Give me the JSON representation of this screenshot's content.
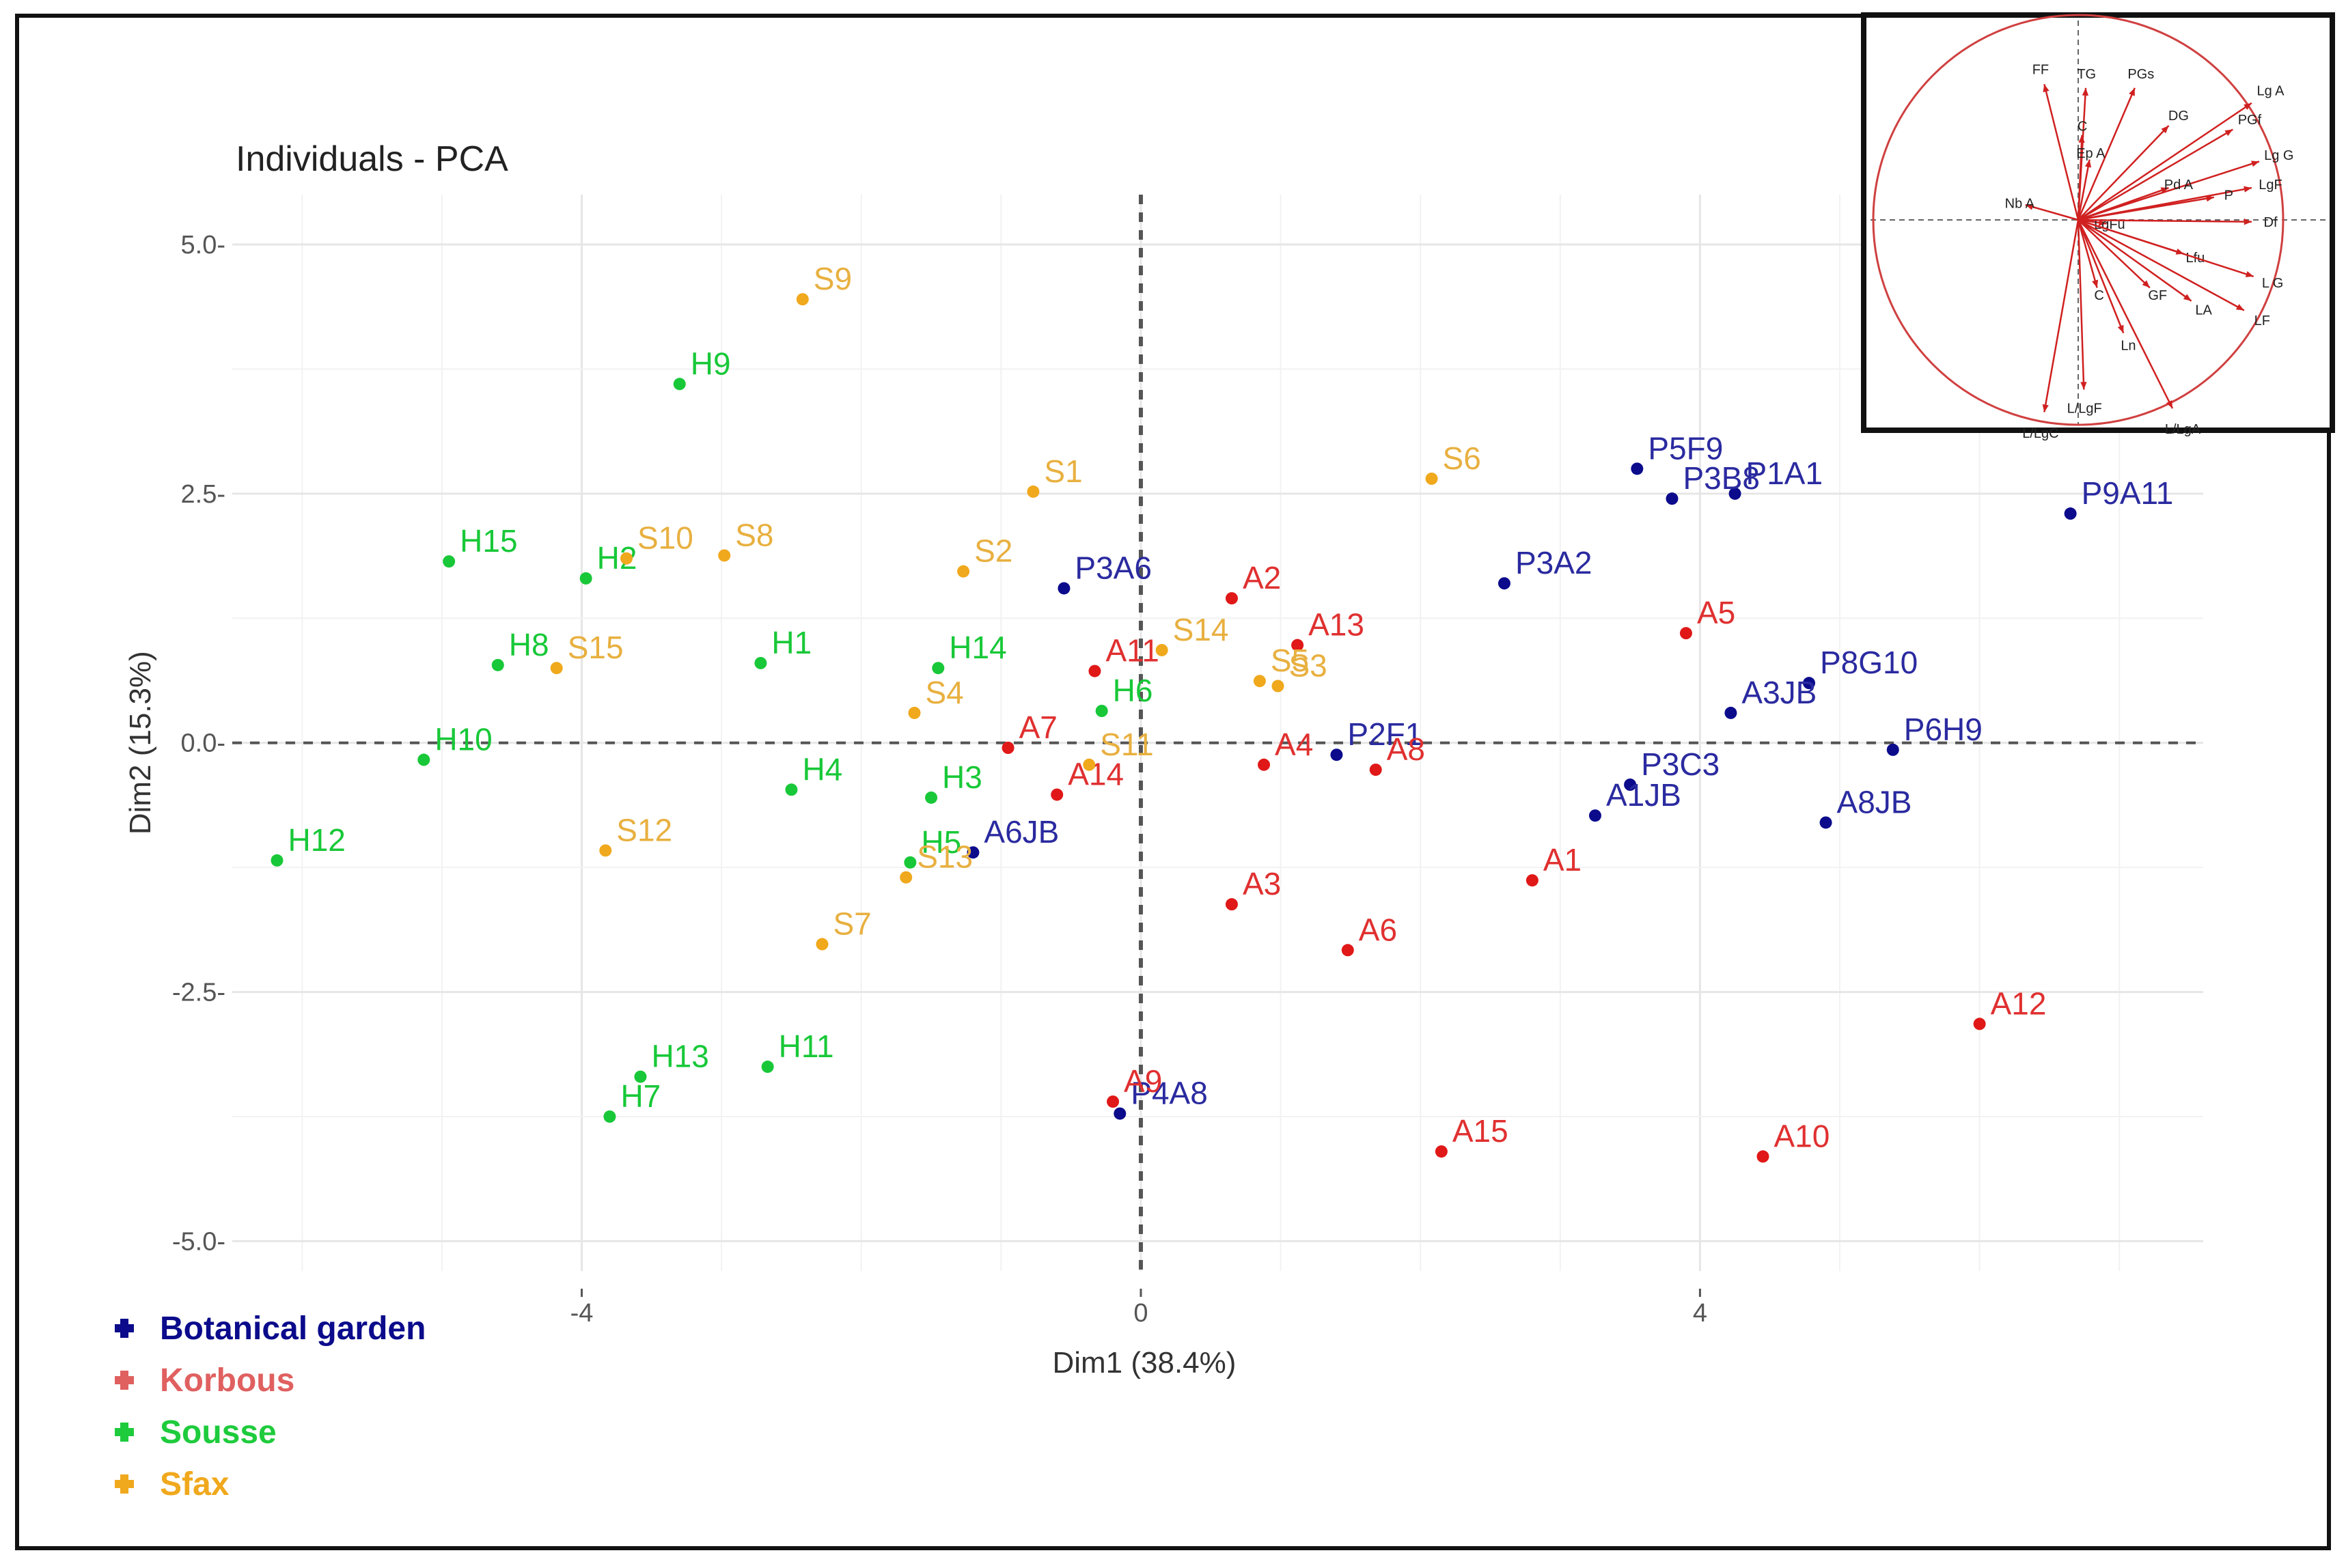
{
  "chart_data": {
    "type": "scatter",
    "title": "Individuals - PCA",
    "xlabel": "Dim1 (38.4%)",
    "ylabel": "Dim2 (15.3%)",
    "xlim": [
      -6.5,
      7.6
    ],
    "ylim": [
      -5.6,
      5.5
    ],
    "xticks": [
      -4,
      0,
      4
    ],
    "yticks": [
      5.0,
      2.5,
      0.0,
      -2.5,
      -5.0
    ],
    "ytick_labels": [
      "5.0-",
      "2.5-",
      "0.0-",
      "-2.5-",
      "-5.0-"
    ],
    "grid": true,
    "legend_position": "bottom-left",
    "legend": [
      {
        "label": "Botanical garden",
        "color": "#0b0b8c"
      },
      {
        "label": "Korbous",
        "color": "#e06060"
      },
      {
        "label": "Sousse",
        "color": "#1ecb3c"
      },
      {
        "label": "Sfax",
        "color": "#f0a81c"
      }
    ],
    "series": [
      {
        "name": "Botanical garden",
        "color": "#0b0b8c",
        "label_color": "#2a2aa0",
        "points": [
          {
            "label": "P5F9",
            "x": 3.55,
            "y": 2.75
          },
          {
            "label": "P1A1",
            "x": 4.25,
            "y": 2.5
          },
          {
            "label": "P3B8",
            "x": 3.8,
            "y": 2.45
          },
          {
            "label": "P9A11",
            "x": 6.65,
            "y": 2.3
          },
          {
            "label": "P3A6",
            "x": -0.55,
            "y": 1.55
          },
          {
            "label": "P3A2",
            "x": 2.6,
            "y": 1.6
          },
          {
            "label": "P8G10",
            "x": 4.78,
            "y": 0.6
          },
          {
            "label": "A3JB",
            "x": 4.22,
            "y": 0.3
          },
          {
            "label": "P2F1",
            "x": 1.4,
            "y": -0.12
          },
          {
            "label": "P6H9",
            "x": 5.38,
            "y": -0.07
          },
          {
            "label": "P3C3",
            "x": 3.5,
            "y": -0.42
          },
          {
            "label": "A1JB",
            "x": 3.25,
            "y": -0.73
          },
          {
            "label": "A8JB",
            "x": 4.9,
            "y": -0.8
          },
          {
            "label": "A6JB",
            "x": -1.2,
            "y": -1.1
          },
          {
            "label": "P4A8",
            "x": -0.15,
            "y": -3.72
          }
        ]
      },
      {
        "name": "Korbous",
        "color": "#e01818",
        "label_color": "#e03030",
        "points": [
          {
            "label": "A2",
            "x": 0.65,
            "y": 1.45
          },
          {
            "label": "A5",
            "x": 3.9,
            "y": 1.1
          },
          {
            "label": "A13",
            "x": 1.12,
            "y": 0.98
          },
          {
            "label": "A11",
            "x": -0.33,
            "y": 0.72
          },
          {
            "label": "A7",
            "x": -0.95,
            "y": -0.05
          },
          {
            "label": "A4",
            "x": 0.88,
            "y": -0.22
          },
          {
            "label": "A8",
            "x": 1.68,
            "y": -0.27
          },
          {
            "label": "A14",
            "x": -0.6,
            "y": -0.52
          },
          {
            "label": "A1",
            "x": 2.8,
            "y": -1.38
          },
          {
            "label": "A3",
            "x": 0.65,
            "y": -1.62
          },
          {
            "label": "A6",
            "x": 1.48,
            "y": -2.08
          },
          {
            "label": "A12",
            "x": 6.0,
            "y": -2.82
          },
          {
            "label": "A9",
            "x": -0.2,
            "y": -3.6
          },
          {
            "label": "A15",
            "x": 2.15,
            "y": -4.1
          },
          {
            "label": "A10",
            "x": 4.45,
            "y": -4.15
          }
        ]
      },
      {
        "name": "Sousse",
        "color": "#18c838",
        "label_color": "#18c838",
        "points": [
          {
            "label": "H9",
            "x": -3.3,
            "y": 3.6
          },
          {
            "label": "H15",
            "x": -4.95,
            "y": 1.82
          },
          {
            "label": "H2",
            "x": -3.97,
            "y": 1.65
          },
          {
            "label": "H8",
            "x": -4.6,
            "y": 0.78
          },
          {
            "label": "H1",
            "x": -2.72,
            "y": 0.8
          },
          {
            "label": "H14",
            "x": -1.45,
            "y": 0.75
          },
          {
            "label": "H6",
            "x": -0.28,
            "y": 0.32
          },
          {
            "label": "H10",
            "x": -5.13,
            "y": -0.17
          },
          {
            "label": "H4",
            "x": -2.5,
            "y": -0.47
          },
          {
            "label": "H3",
            "x": -1.5,
            "y": -0.55
          },
          {
            "label": "H5",
            "x": -1.65,
            "y": -1.2
          },
          {
            "label": "H12",
            "x": -6.18,
            "y": -1.18
          },
          {
            "label": "H13",
            "x": -3.58,
            "y": -3.35
          },
          {
            "label": "H11",
            "x": -2.67,
            "y": -3.25
          },
          {
            "label": "H7",
            "x": -3.8,
            "y": -3.75
          }
        ]
      },
      {
        "name": "Sfax",
        "color": "#f0a81c",
        "label_color": "#e8b040",
        "points": [
          {
            "label": "S9",
            "x": -2.42,
            "y": 4.45
          },
          {
            "label": "S1",
            "x": -0.77,
            "y": 2.52
          },
          {
            "label": "S6",
            "x": 2.08,
            "y": 2.65
          },
          {
            "label": "S10",
            "x": -3.68,
            "y": 1.85
          },
          {
            "label": "S8",
            "x": -2.98,
            "y": 1.88
          },
          {
            "label": "S2",
            "x": -1.27,
            "y": 1.72
          },
          {
            "label": "S14",
            "x": 0.15,
            "y": 0.93
          },
          {
            "label": "S15",
            "x": -4.18,
            "y": 0.75
          },
          {
            "label": "S5",
            "x": 0.85,
            "y": 0.62
          },
          {
            "label": "S3",
            "x": 0.98,
            "y": 0.57
          },
          {
            "label": "S4",
            "x": -1.62,
            "y": 0.3
          },
          {
            "label": "S11",
            "x": -0.37,
            "y": -0.22
          },
          {
            "label": "S12",
            "x": -3.83,
            "y": -1.08
          },
          {
            "label": "S13",
            "x": -1.68,
            "y": -1.35
          },
          {
            "label": "S7",
            "x": -2.28,
            "y": -2.02
          }
        ]
      }
    ],
    "inset_correlation_circle": {
      "title": "",
      "variables": [
        {
          "label": "FF",
          "x": -0.18,
          "y": 0.72
        },
        {
          "label": "TG",
          "x": 0.04,
          "y": 0.7
        },
        {
          "label": "PGs",
          "x": 0.3,
          "y": 0.7
        },
        {
          "label": "Lg A",
          "x": 0.92,
          "y": 0.62
        },
        {
          "label": "DG",
          "x": 0.48,
          "y": 0.5
        },
        {
          "label": "PGf",
          "x": 0.82,
          "y": 0.48
        },
        {
          "label": "C",
          "x": 0.02,
          "y": 0.45
        },
        {
          "label": "Ep A",
          "x": 0.06,
          "y": 0.32
        },
        {
          "label": "Lg G",
          "x": 0.96,
          "y": 0.31
        },
        {
          "label": "Pd A",
          "x": 0.48,
          "y": 0.17
        },
        {
          "label": "LgF",
          "x": 0.92,
          "y": 0.17
        },
        {
          "label": "P",
          "x": 0.72,
          "y": 0.12
        },
        {
          "label": "Nb A",
          "x": -0.28,
          "y": 0.08
        },
        {
          "label": "LgFu",
          "x": 0.15,
          "y": -0.02
        },
        {
          "label": "Df",
          "x": 0.92,
          "y": -0.01
        },
        {
          "label": "Lfu",
          "x": 0.56,
          "y": -0.18
        },
        {
          "label": "C",
          "x": 0.1,
          "y": -0.36
        },
        {
          "label": "GF",
          "x": 0.38,
          "y": -0.36
        },
        {
          "label": "LA",
          "x": 0.6,
          "y": -0.43
        },
        {
          "label": "L G",
          "x": 0.93,
          "y": -0.3
        },
        {
          "label": "LF",
          "x": 0.88,
          "y": -0.48
        },
        {
          "label": "Ln",
          "x": 0.24,
          "y": -0.6
        },
        {
          "label": "L/LgF",
          "x": 0.03,
          "y": -0.9
        },
        {
          "label": "L/LgA",
          "x": 0.5,
          "y": -1.0
        },
        {
          "label": "L/LgC",
          "x": -0.18,
          "y": -1.02
        }
      ]
    }
  }
}
